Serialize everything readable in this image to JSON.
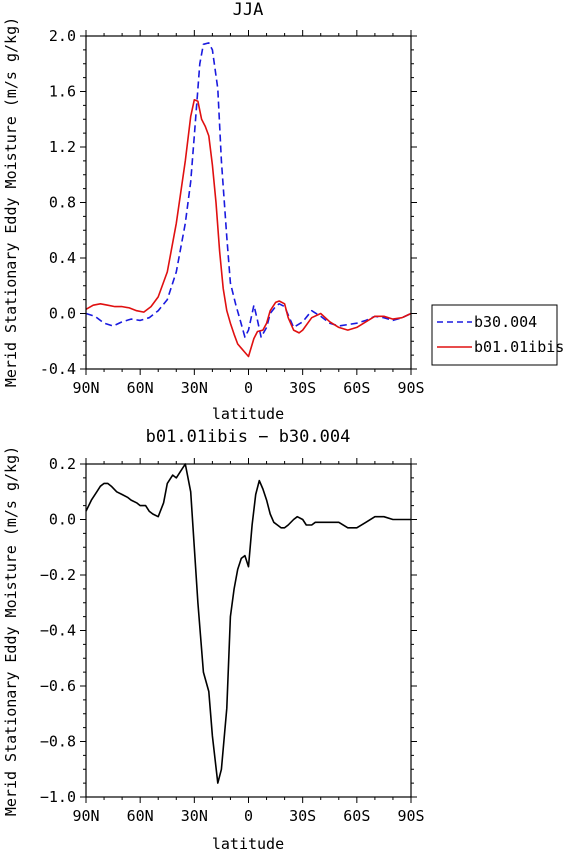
{
  "chart_data": [
    {
      "type": "line",
      "title": "JJA",
      "xlabel": "latitude",
      "ylabel": "Merid Stationary Eddy Moisture (m/s g/kg)",
      "xlim": [
        90,
        -90
      ],
      "ylim": [
        -0.4,
        2.0
      ],
      "x_ticks": [
        90,
        60,
        30,
        0,
        -30,
        -60,
        -90
      ],
      "x_tick_labels": [
        "90N",
        "60N",
        "30N",
        "0",
        "30S",
        "60S",
        "90S"
      ],
      "y_ticks": [
        -0.4,
        0.0,
        0.4,
        0.8,
        1.2,
        1.6,
        2.0
      ],
      "y_tick_labels": [
        "-0.4",
        "0.0",
        "0.4",
        "0.8",
        "1.2",
        "1.6",
        "2.0"
      ],
      "grid": false,
      "legend_position": "right",
      "series": [
        {
          "name": "b30.004",
          "color": "#1a1adf",
          "dash": "dashed",
          "x": [
            90,
            85,
            80,
            75,
            70,
            65,
            60,
            55,
            50,
            45,
            40,
            35,
            32,
            30,
            27,
            25,
            22,
            20,
            17,
            15,
            12,
            10,
            7,
            5,
            2,
            0,
            -3,
            -5,
            -7,
            -10,
            -12,
            -15,
            -17,
            -20,
            -25,
            -30,
            -35,
            -40,
            -45,
            -50,
            -55,
            -60,
            -65,
            -70,
            -75,
            -80,
            -85,
            -90
          ],
          "y": [
            0.0,
            -0.02,
            -0.07,
            -0.09,
            -0.06,
            -0.04,
            -0.05,
            -0.03,
            0.02,
            0.1,
            0.3,
            0.65,
            0.95,
            1.28,
            1.8,
            1.94,
            1.95,
            1.9,
            1.62,
            1.1,
            0.55,
            0.22,
            0.06,
            -0.03,
            -0.17,
            -0.12,
            0.06,
            -0.05,
            -0.17,
            -0.1,
            0.0,
            0.05,
            0.07,
            0.05,
            -0.1,
            -0.06,
            0.02,
            -0.02,
            -0.07,
            -0.09,
            -0.08,
            -0.07,
            -0.05,
            -0.02,
            -0.03,
            -0.05,
            -0.03,
            0.0
          ]
        },
        {
          "name": "b01.01ibis",
          "color": "#e01010",
          "dash": "solid",
          "x": [
            90,
            86,
            82,
            78,
            74,
            70,
            66,
            62,
            58,
            54,
            50,
            45,
            40,
            35,
            32,
            30,
            28,
            26,
            24,
            22,
            20,
            18,
            16,
            14,
            12,
            10,
            8,
            6,
            4,
            2,
            0,
            -3,
            -5,
            -8,
            -10,
            -12,
            -15,
            -17,
            -20,
            -22,
            -25,
            -28,
            -30,
            -35,
            -40,
            -45,
            -50,
            -55,
            -60,
            -65,
            -70,
            -75,
            -80,
            -85,
            -90
          ],
          "y": [
            0.03,
            0.06,
            0.07,
            0.06,
            0.05,
            0.05,
            0.04,
            0.02,
            0.01,
            0.05,
            0.12,
            0.3,
            0.65,
            1.1,
            1.42,
            1.54,
            1.53,
            1.4,
            1.35,
            1.28,
            1.07,
            0.8,
            0.45,
            0.18,
            0.02,
            -0.07,
            -0.15,
            -0.22,
            -0.25,
            -0.28,
            -0.31,
            -0.18,
            -0.13,
            -0.12,
            -0.07,
            0.02,
            0.08,
            0.09,
            0.07,
            -0.03,
            -0.12,
            -0.14,
            -0.12,
            -0.03,
            0.0,
            -0.06,
            -0.1,
            -0.12,
            -0.1,
            -0.06,
            -0.02,
            -0.02,
            -0.04,
            -0.03,
            0.0
          ]
        }
      ]
    },
    {
      "type": "line",
      "title": "b01.01ibis − b30.004",
      "xlabel": "latitude",
      "ylabel": "Merid Stationary Eddy Moisture (m/s g/kg)",
      "xlim": [
        90,
        -90
      ],
      "ylim": [
        -1.0,
        0.2
      ],
      "x_ticks": [
        90,
        60,
        30,
        0,
        -30,
        -60,
        -90
      ],
      "x_tick_labels": [
        "90N",
        "60N",
        "30N",
        "0",
        "30S",
        "60S",
        "90S"
      ],
      "y_ticks": [
        -1.0,
        -0.8,
        -0.6,
        -0.4,
        -0.2,
        0.0,
        0.2
      ],
      "y_tick_labels": [
        "−1.0",
        "−0.8",
        "−0.6",
        "−0.4",
        "−0.2",
        "0.0",
        "0.2"
      ],
      "grid": false,
      "series": [
        {
          "color": "#000000",
          "dash": "solid",
          "x": [
            90,
            87,
            84,
            82,
            80,
            78,
            76,
            73,
            70,
            67,
            65,
            62,
            60,
            57,
            55,
            53,
            50,
            47,
            45,
            42,
            40,
            38,
            35,
            32,
            30,
            28,
            25,
            22,
            20,
            17,
            15,
            12,
            10,
            8,
            6,
            4,
            2,
            0,
            -2,
            -4,
            -6,
            -8,
            -10,
            -12,
            -14,
            -16,
            -18,
            -20,
            -22,
            -25,
            -27,
            -30,
            -32,
            -35,
            -37,
            -40,
            -43,
            -45,
            -48,
            -50,
            -55,
            -60,
            -65,
            -70,
            -75,
            -80,
            -85,
            -90
          ],
          "y": [
            0.03,
            0.07,
            0.1,
            0.12,
            0.13,
            0.13,
            0.12,
            0.1,
            0.09,
            0.08,
            0.07,
            0.06,
            0.05,
            0.05,
            0.03,
            0.02,
            0.01,
            0.06,
            0.13,
            0.16,
            0.15,
            0.17,
            0.2,
            0.1,
            -0.1,
            -0.3,
            -0.55,
            -0.62,
            -0.78,
            -0.95,
            -0.9,
            -0.68,
            -0.35,
            -0.25,
            -0.18,
            -0.14,
            -0.13,
            -0.17,
            -0.02,
            0.09,
            0.14,
            0.11,
            0.07,
            0.02,
            -0.01,
            -0.02,
            -0.03,
            -0.03,
            -0.02,
            0.0,
            0.01,
            0.0,
            -0.02,
            -0.02,
            -0.01,
            -0.01,
            -0.01,
            -0.01,
            -0.01,
            -0.01,
            -0.03,
            -0.03,
            -0.01,
            0.01,
            0.01,
            0.0,
            0.0,
            0.0
          ]
        }
      ]
    }
  ]
}
